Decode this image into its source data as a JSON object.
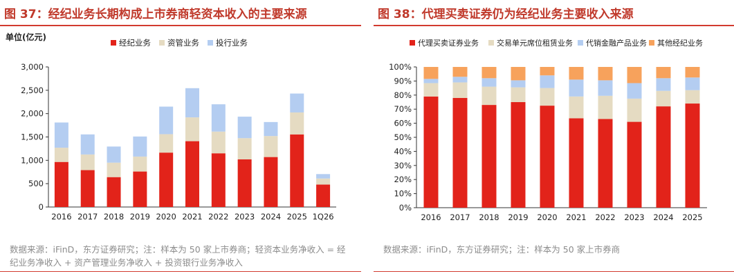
{
  "colors": {
    "red": "#e2231a",
    "beige": "#e5dbc2",
    "blue": "#b4cdf1",
    "orange": "#f7a25c",
    "title": "#c0392b"
  },
  "chart_data": [
    {
      "type": "bar",
      "stacked": true,
      "title": "图 37：经纪业务长期构成上市券商轻资本收入的主要来源",
      "ylabel": "单位(亿元)",
      "xlabel": "",
      "ylim": [
        0,
        3000
      ],
      "yticks": [
        "0",
        "500",
        "1,000",
        "1,500",
        "2,000",
        "2,500",
        "3,000"
      ],
      "grid": false,
      "legend_position": "top",
      "categories": [
        "2016",
        "2017",
        "2018",
        "2019",
        "2020",
        "2021",
        "2022",
        "2023",
        "2024",
        "2025",
        "1Q26"
      ],
      "series": [
        {
          "name": "经纪业务",
          "values": [
            965,
            790,
            640,
            760,
            1165,
            1410,
            1150,
            1020,
            1070,
            1555,
            480
          ]
        },
        {
          "name": "资管业务",
          "values": [
            305,
            335,
            310,
            320,
            395,
            510,
            465,
            455,
            450,
            470,
            130
          ]
        },
        {
          "name": "投行业务",
          "values": [
            540,
            430,
            345,
            430,
            590,
            625,
            585,
            460,
            300,
            405,
            95
          ]
        }
      ],
      "source": "数据来源：iFinD，东方证券研究；注：样本为 50 家上市券商；轻资本业务净收入 = 经纪业务净收入 + 资产管理业务净收入 + 投资银行业务净收入"
    },
    {
      "type": "bar",
      "stacked": true,
      "title": "图 38：代理买卖证券仍为经纪业务主要收入来源",
      "xlabel": "",
      "ylabel": "",
      "ylim": [
        0,
        100
      ],
      "yticks": [
        "0%",
        "10%",
        "20%",
        "30%",
        "40%",
        "50%",
        "60%",
        "70%",
        "80%",
        "90%",
        "100%"
      ],
      "grid": false,
      "legend_position": "top",
      "categories": [
        "2016",
        "2017",
        "2018",
        "2019",
        "2020",
        "2021",
        "2022",
        "2023",
        "2024",
        "2025"
      ],
      "series": [
        {
          "name": "代理买卖证券业务",
          "values": [
            79,
            78,
            73,
            75,
            72.5,
            63.5,
            63,
            61,
            72,
            74
          ]
        },
        {
          "name": "交易单元席位租赁业务",
          "values": [
            9.5,
            11,
            13,
            10.5,
            12.5,
            15.5,
            16.5,
            16.5,
            11,
            9.5
          ]
        },
        {
          "name": "代销金融产品业务",
          "values": [
            3,
            4,
            6,
            5,
            9,
            12,
            11,
            11,
            9,
            9
          ]
        },
        {
          "name": "其他经纪业务",
          "values": [
            8.5,
            7,
            8,
            9.5,
            6,
            9,
            9.5,
            11.5,
            8,
            7.5
          ]
        }
      ],
      "source": "数据来源：iFinD，东方证券研究；注：样本为 50 家上市券商"
    }
  ]
}
